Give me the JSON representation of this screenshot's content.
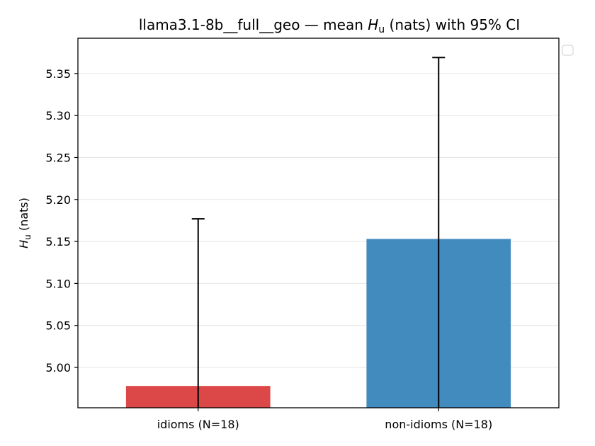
{
  "chart_data": {
    "type": "bar",
    "title_prefix": "llama3.1-8b__full__geo — mean ",
    "title_symbol": "H",
    "title_subscript": "u",
    "title_suffix": " (nats) with 95% CI",
    "ylabel_symbol": "H",
    "ylabel_subscript": "u",
    "ylabel_suffix": " (nats)",
    "categories": [
      "idioms (N=18)",
      "non-idioms (N=18)"
    ],
    "values": [
      4.978,
      5.153
    ],
    "ci_upper": [
      5.177,
      5.369
    ],
    "colors": [
      "#dc4848",
      "#428bbf"
    ],
    "ylim": [
      4.952,
      5.392
    ],
    "yticks": [
      "5.00",
      "5.05",
      "5.10",
      "5.15",
      "5.20",
      "5.25",
      "5.30",
      "5.35"
    ],
    "grid": true,
    "legend": "top-right (empty)"
  }
}
